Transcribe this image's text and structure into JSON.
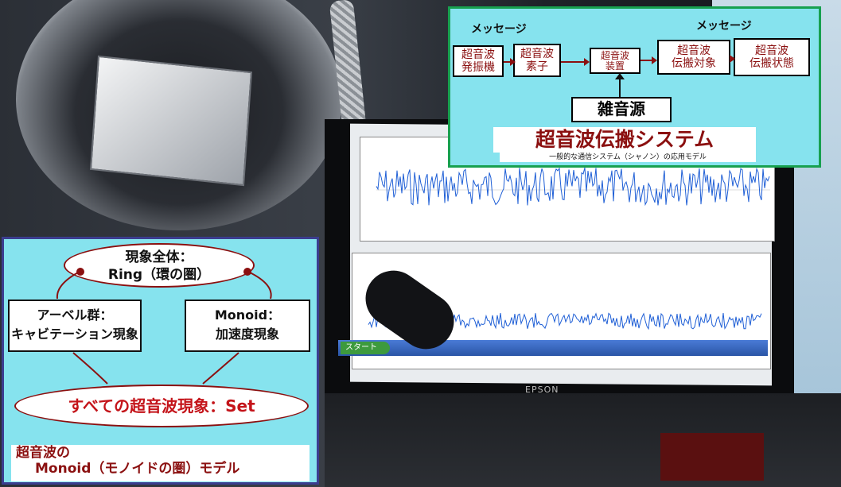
{
  "top_diagram": {
    "message_left": "メッセージ",
    "message_right": "メッセージ",
    "box1": "超音波\n発振機",
    "box2": "超音波\n素子",
    "box3": "超音波\n装置",
    "box4": "超音波\n伝搬対象",
    "box5": "超音波\n伝搬状態",
    "noise_source": "雑音源",
    "title": "超音波伝搬システム",
    "subtitle": "一般的な通信システム（シャノン）の応用モデル"
  },
  "left_diagram": {
    "top_ellipse_line1": "現象全体：",
    "top_ellipse_line2": "Ring（環の圏）",
    "left_box_line1": "アーベル群：",
    "left_box_line2": "キャビテーション現象",
    "right_box_line1": "Monoid：",
    "right_box_line2": "加速度現象",
    "bottom_ellipse": "すべての超音波現象：Set",
    "caption_line1": "超音波の",
    "caption_line2": "Monoid（モノイドの圏）モデル"
  },
  "screen": {
    "start_label": "スタート",
    "brand": "EPSON"
  },
  "colors": {
    "panel_bg": "#86e3ee",
    "dark_red": "#8b1010",
    "top_border": "#17a04f",
    "left_border": "#3b3d8f",
    "waveform": "#1f5fd6"
  }
}
